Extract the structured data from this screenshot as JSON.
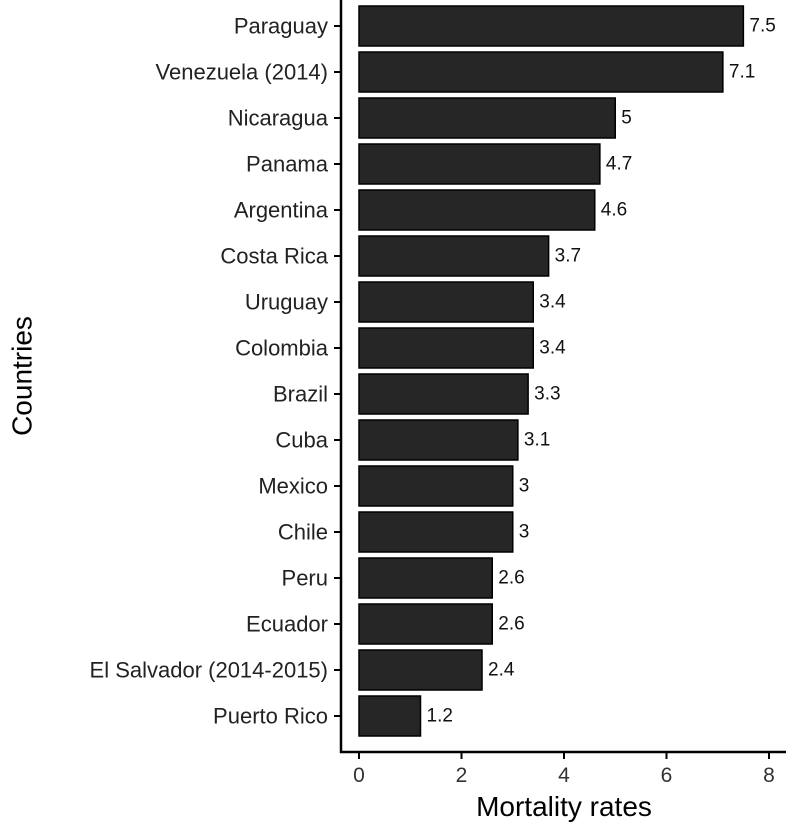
{
  "chart_data": {
    "type": "bar",
    "orientation": "horizontal",
    "categories": [
      "Paraguay",
      "Venezuela (2014)",
      "Nicaragua",
      "Panama",
      "Argentina",
      "Costa Rica",
      "Uruguay",
      "Colombia",
      "Brazil",
      "Cuba",
      "Mexico",
      "Chile",
      "Peru",
      "Ecuador",
      "El Salvador (2014-2015)",
      "Puerto Rico"
    ],
    "values": [
      7.5,
      7.1,
      5,
      4.7,
      4.6,
      3.7,
      3.4,
      3.4,
      3.3,
      3.1,
      3,
      3,
      2.6,
      2.6,
      2.4,
      1.2
    ],
    "value_labels": [
      "7.5",
      "7.1",
      "5",
      "4.7",
      "4.6",
      "3.7",
      "3.4",
      "3.4",
      "3.3",
      "3.1",
      "3",
      "3",
      "2.6",
      "2.6",
      "2.4",
      "1.2"
    ],
    "xlabel": "Mortality rates",
    "ylabel": "Countries",
    "xlim": [
      0,
      8
    ],
    "xticks": [
      0,
      2,
      4,
      6,
      8
    ],
    "grid": false,
    "bar_color": "#262626"
  }
}
